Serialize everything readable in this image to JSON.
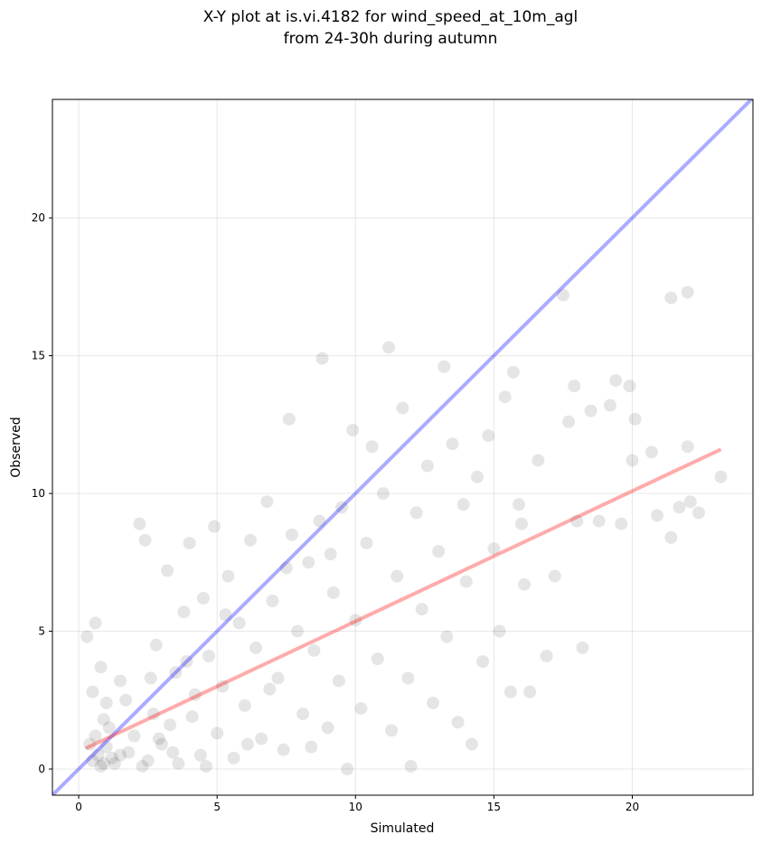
{
  "chart_data": {
    "type": "scatter",
    "title": [
      "X-Y plot at is.vi.4182 for wind_speed_at_10m_agl",
      "from 24-30h during autumn"
    ],
    "x_label": "Simulated",
    "y_label": "Observed",
    "color": "#000000",
    "opacity": 0.1,
    "x": [
      0.5,
      0.7,
      0.9,
      1.0,
      0.6,
      1.2,
      0.8,
      1.1,
      0.4,
      1.3,
      0.3,
      0.6,
      0.8,
      1.0,
      0.5,
      0.9,
      1.5,
      1.8,
      2.0,
      2.2,
      2.4,
      2.5,
      2.7,
      2.8,
      3.0,
      3.2,
      3.3,
      3.5,
      3.6,
      3.8,
      4.0,
      4.2,
      4.4,
      4.5,
      4.7,
      4.9,
      5.0,
      5.2,
      5.4,
      5.6,
      5.8,
      6.0,
      6.2,
      6.4,
      6.6,
      6.8,
      7.0,
      7.2,
      7.4,
      7.6,
      7.7,
      7.9,
      8.1,
      8.3,
      8.5,
      8.7,
      8.8,
      9.0,
      9.2,
      9.4,
      9.5,
      9.7,
      9.9,
      10.0,
      10.2,
      10.4,
      10.6,
      10.8,
      11.0,
      11.2,
      11.3,
      11.5,
      11.7,
      11.9,
      12.0,
      12.2,
      12.4,
      12.6,
      12.8,
      13.0,
      13.2,
      13.3,
      13.5,
      13.7,
      13.9,
      14.0,
      14.2,
      14.4,
      14.6,
      14.8,
      15.0,
      15.2,
      15.4,
      15.6,
      15.7,
      15.9,
      16.1,
      16.3,
      16.6,
      16.9,
      17.2,
      17.5,
      17.7,
      17.9,
      18.2,
      18.5,
      18.8,
      19.2,
      19.4,
      19.6,
      19.9,
      20.1,
      20.7,
      20.9,
      21.4,
      21.4,
      21.7,
      22.0,
      22.1,
      22.4,
      23.2,
      22.0,
      20.0,
      18.0,
      16.0,
      1.5,
      2.3,
      2.9,
      3.4,
      4.1,
      4.6,
      1.7,
      2.6,
      3.9,
      5.3,
      6.1,
      6.9,
      7.5,
      8.4,
      9.1
    ],
    "values": [
      0.3,
      0.5,
      0.2,
      0.8,
      1.2,
      0.4,
      0.1,
      1.5,
      0.9,
      0.2,
      4.8,
      5.3,
      3.7,
      2.4,
      2.8,
      1.8,
      3.2,
      0.6,
      1.2,
      8.9,
      8.3,
      0.3,
      2.0,
      4.5,
      0.9,
      7.2,
      1.6,
      3.5,
      0.2,
      5.7,
      8.2,
      2.7,
      0.5,
      6.2,
      4.1,
      8.8,
      1.3,
      3.0,
      7.0,
      0.4,
      5.3,
      2.3,
      8.3,
      4.4,
      1.1,
      9.7,
      6.1,
      3.3,
      0.7,
      12.7,
      8.5,
      5.0,
      2.0,
      7.5,
      4.3,
      9.0,
      14.9,
      1.5,
      6.4,
      3.2,
      9.5,
      0.0,
      12.3,
      5.4,
      2.2,
      8.2,
      11.7,
      4.0,
      10.0,
      15.3,
      1.4,
      7.0,
      13.1,
      3.3,
      0.1,
      9.3,
      5.8,
      11.0,
      2.4,
      7.9,
      14.6,
      4.8,
      11.8,
      1.7,
      9.6,
      6.8,
      0.9,
      10.6,
      3.9,
      12.1,
      8.0,
      5.0,
      13.5,
      2.8,
      14.4,
      9.6,
      6.7,
      2.8,
      11.2,
      4.1,
      7.0,
      17.2,
      12.6,
      13.9,
      4.4,
      13.0,
      9.0,
      13.2,
      14.1,
      8.9,
      13.9,
      12.7,
      11.5,
      9.2,
      8.4,
      17.1,
      9.5,
      17.3,
      9.7,
      9.3,
      10.6,
      11.7,
      11.2,
      9.0,
      8.9,
      0.5,
      0.1,
      1.1,
      0.6,
      1.9,
      0.1,
      2.5,
      3.3,
      3.9,
      5.6,
      0.9,
      2.9,
      7.3,
      0.8,
      7.8
    ],
    "lines": [
      {
        "color": "#0000ff",
        "x": [
          -0.95,
          24.36
        ],
        "values": [
          -0.95,
          24.36
        ]
      },
      {
        "color": "#ff0000",
        "x": [
          0.25,
          23.2
        ],
        "values": [
          0.75,
          11.6
        ]
      }
    ],
    "xlim": [
      -0.95,
      24.36
    ],
    "ylim": [
      -0.95,
      24.3
    ],
    "xticks": [
      0,
      5,
      10,
      15,
      20
    ],
    "yticks": [
      0,
      5,
      10,
      15,
      20
    ],
    "grid": true
  }
}
